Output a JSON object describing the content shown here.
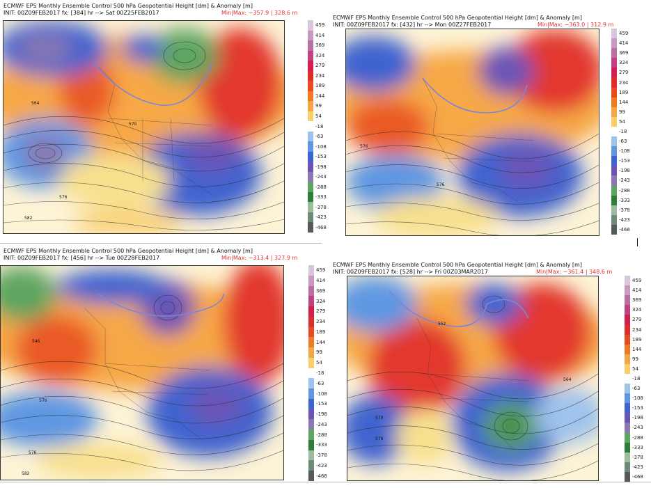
{
  "panels": [
    {
      "title": "ECMWF EPS Monthly Ensemble Control 500 hPa Geopotential Height [dm] & Anomaly [m]",
      "init": "INIT: 00Z09FEB2017  fx: [384] hr --> Sat 00Z25FEB2017",
      "minmax": "Min|Max: −357.9 | 328.6 m"
    },
    {
      "title": "ECMWF EPS Monthly Ensemble Control 500 hPa Geopotential Height [dm] & Anomaly [m]",
      "init": "INIT: 00Z09FEB2017  fx: [432] hr --> Mon 00Z27FEB2017",
      "minmax": "Min|Max: −363.0 | 312.9 m"
    },
    {
      "title": "ECMWF EPS Monthly Ensemble Control 500 hPa Geopotential Height [dm] & Anomaly [m]",
      "init": "INIT: 00Z09FEB2017  fx: [456] hr --> Tue 00Z28FEB2017",
      "minmax": "Min|Max: −313.4 | 327.9 m"
    },
    {
      "title": "ECMWF EPS Monthly Ensemble Control 500 hPa Geopotential Height [dm] & Anomaly [m]",
      "init": "INIT: 00Z09FEB2017  fx: [528] hr --> Fri 00Z03MAR2017",
      "minmax": "Min|Max: −361.4 | 348.6 m"
    }
  ],
  "colorbar": {
    "labels": [
      "459",
      "414",
      "369",
      "324",
      "279",
      "234",
      "189",
      "144",
      "99",
      "54",
      "-18",
      "-63",
      "-108",
      "-153",
      "-198",
      "-243",
      "-288",
      "-333",
      "-378",
      "-423",
      "-468"
    ],
    "colors": [
      "#d8c6dd",
      "#c99ac0",
      "#bb6ea3",
      "#c1427f",
      "#d11f4f",
      "#df2d2d",
      "#ea4a22",
      "#f07a22",
      "#f5a545",
      "#f8cf6a",
      "#ffffff",
      "#9ec3ec",
      "#5f97e2",
      "#3f63cf",
      "#6a54b6",
      "#8b78b0",
      "#5fa560",
      "#2d7e3a",
      "#9cbc9c",
      "#6d8a7b",
      "#575a57"
    ]
  },
  "contour_labels": [
    "546",
    "552",
    "558",
    "564",
    "570",
    "576",
    "582"
  ],
  "colors": {
    "positive_anomaly": "#e2382f",
    "negative_anomaly": "#3f63cf",
    "minmax_text": "#e4302f"
  }
}
